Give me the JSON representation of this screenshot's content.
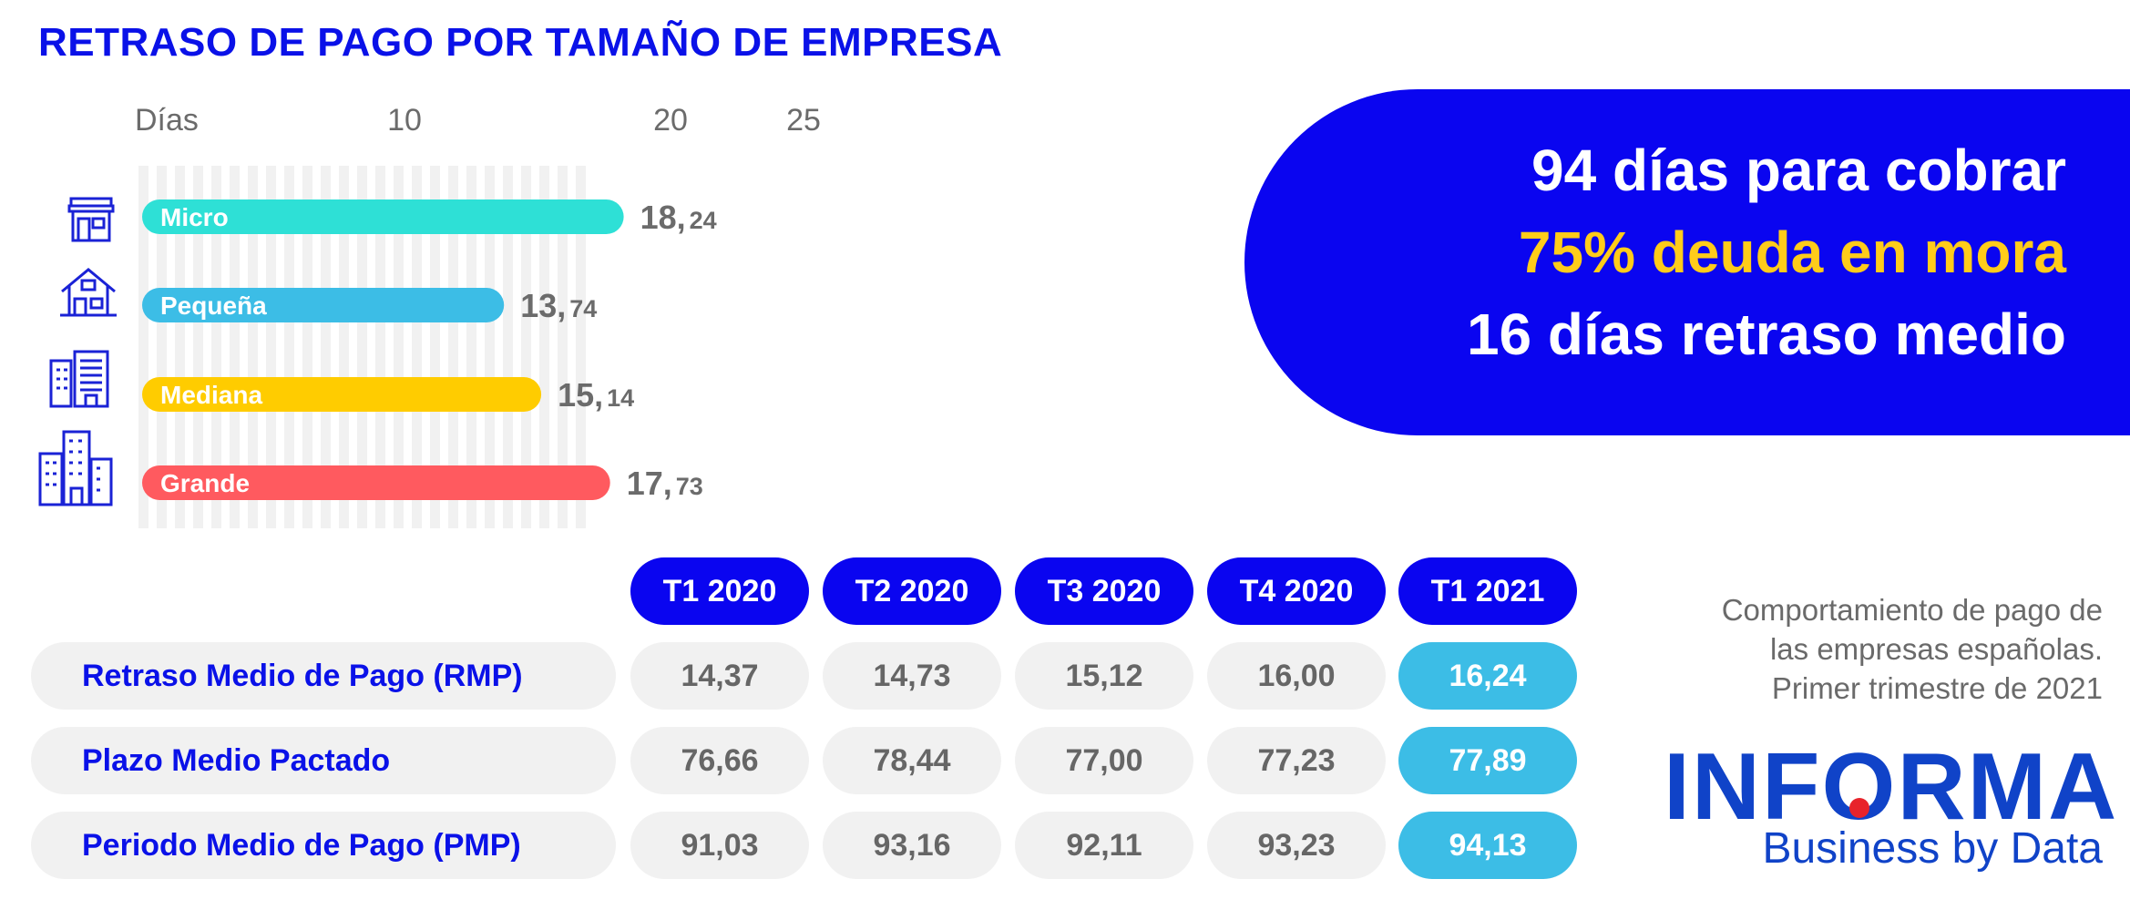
{
  "title": "RETRASO DE PAGO POR TAMAÑO DE EMPRESA",
  "chart_data": {
    "type": "bar",
    "orientation": "horizontal",
    "xlabel": "Días",
    "xticks": [
      "10",
      "20",
      "25"
    ],
    "xlim": [
      0,
      25
    ],
    "categories": [
      "Micro",
      "Pequeña",
      "Mediana",
      "Grande"
    ],
    "values": [
      18.24,
      13.74,
      15.14,
      17.73
    ],
    "value_labels": [
      {
        "int": "18,",
        "dec": "24"
      },
      {
        "int": "13,",
        "dec": "74"
      },
      {
        "int": "15,",
        "dec": "14"
      },
      {
        "int": "17,",
        "dec": "73"
      }
    ],
    "colors": [
      "#2ee0d6",
      "#3cbde6",
      "#ffcc00",
      "#ff5a5f"
    ],
    "icons": [
      "shop-icon",
      "house-icon",
      "office-building-icon",
      "city-buildings-icon"
    ]
  },
  "highlight": {
    "line1": "94 días para cobrar",
    "line2": "75% deuda en mora",
    "line3": "16 días retraso medio"
  },
  "table": {
    "columns": [
      "T1 2020",
      "T2 2020",
      "T3 2020",
      "T4 2020",
      "T1 2021"
    ],
    "rows": [
      {
        "label": "Retraso Medio de Pago (RMP)",
        "values": [
          "14,37",
          "14,73",
          "15,12",
          "16,00",
          "16,24"
        ]
      },
      {
        "label": "Plazo Medio Pactado",
        "values": [
          "76,66",
          "78,44",
          "77,00",
          "77,23",
          "77,89"
        ]
      },
      {
        "label": "Periodo Medio de Pago (PMP)",
        "values": [
          "91,03",
          "93,16",
          "92,11",
          "93,23",
          "94,13"
        ]
      }
    ]
  },
  "caption": {
    "line1": "Comportamiento  de pago de",
    "line2": "las empresas españolas.",
    "line3": "Primer trimestre de 2021"
  },
  "logo": {
    "word_a": "INF",
    "word_o": "O",
    "word_b": "RMA",
    "tagline": "Business by Data"
  }
}
